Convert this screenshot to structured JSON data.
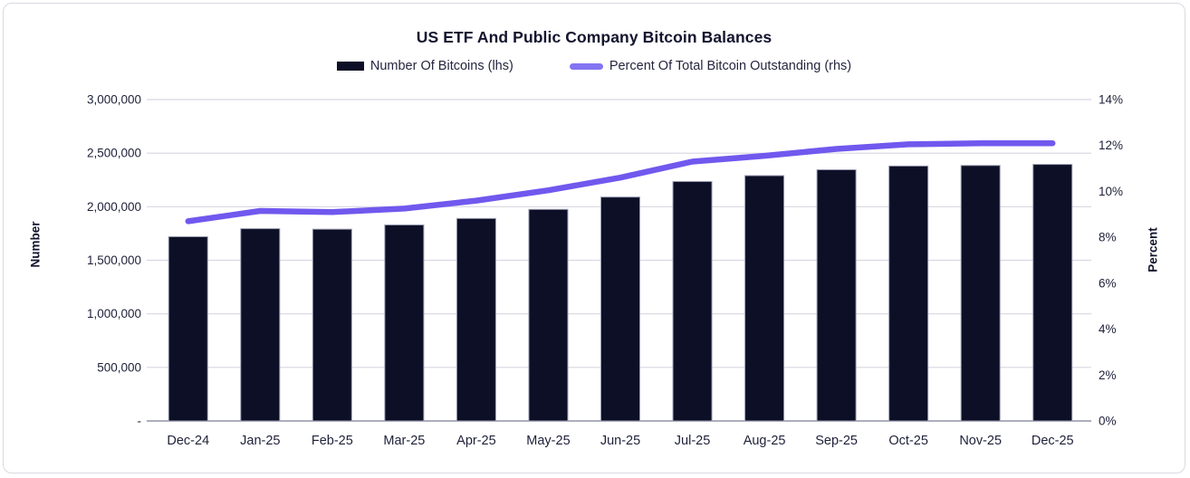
{
  "chart": {
    "title": "US ETF And Public Company Bitcoin Balances",
    "legend": {
      "bar_label": "Number Of Bitcoins (lhs)",
      "line_label": "Percent Of Total Bitcoin Outstanding (rhs)"
    }
  },
  "chart_data": {
    "type": "bar+line",
    "title": "US ETF And Public Company Bitcoin Balances",
    "categories": [
      "Dec-24",
      "Jan-25",
      "Feb-25",
      "Mar-25",
      "Apr-25",
      "May-25",
      "Jun-25",
      "Jul-25",
      "Aug-25",
      "Sep-25",
      "Oct-25",
      "Nov-25",
      "Dec-25"
    ],
    "series": [
      {
        "name": "Number Of Bitcoins (lhs)",
        "type": "bar",
        "axis": "left",
        "values": [
          1720000,
          1795000,
          1790000,
          1830000,
          1890000,
          1975000,
          2090000,
          2235000,
          2290000,
          2345000,
          2380000,
          2385000,
          2395000
        ]
      },
      {
        "name": "Percent Of Total Bitcoin Outstanding (rhs)",
        "type": "line",
        "axis": "right",
        "values": [
          8.7,
          9.15,
          9.1,
          9.25,
          9.6,
          10.05,
          10.6,
          11.3,
          11.55,
          11.85,
          12.05,
          12.1,
          12.1
        ]
      }
    ],
    "left_axis": {
      "label": "Number",
      "range": [
        0,
        3000000
      ],
      "tick_values": [
        3000000,
        2500000,
        2000000,
        1500000,
        1000000,
        500000,
        0
      ],
      "tick_labels": [
        "3,000,000",
        "2,500,000",
        "2,000,000",
        "1,500,000",
        "1,000,000",
        "500,000",
        "-"
      ]
    },
    "right_axis": {
      "label": "Percent",
      "range": [
        0,
        14
      ],
      "tick_values": [
        14,
        12,
        10,
        8,
        6,
        4,
        2,
        0
      ],
      "tick_labels": [
        "14%",
        "12%",
        "10%",
        "8%",
        "6%",
        "4%",
        "2%",
        "0%"
      ]
    },
    "grid": "horizontal",
    "legend_position": "top-center",
    "colors": {
      "bar": "#0d0f26",
      "bar_stroke": "#9b9cb2",
      "line": "#7158ee",
      "legend_line_swatch": "#8374f2",
      "grid": "#d7d7e3",
      "axis_line": "#9193a9",
      "text": "#1e2038"
    }
  }
}
